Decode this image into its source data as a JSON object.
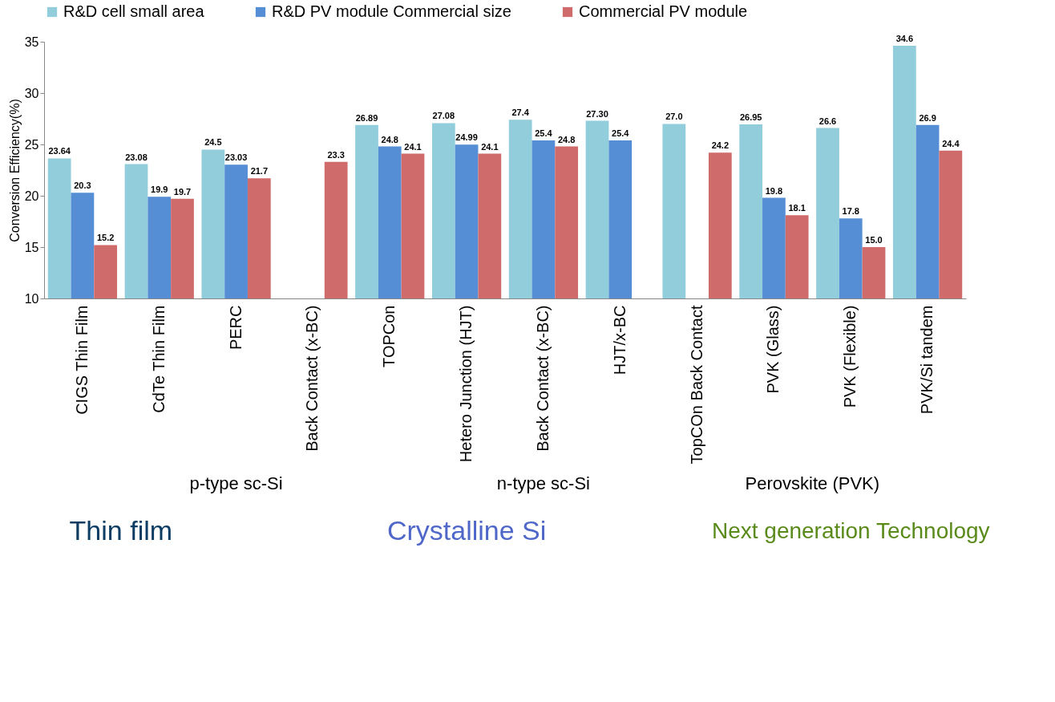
{
  "chart_data": {
    "type": "bar",
    "ylabel": "Conversion Efficiency(%)",
    "categories": [
      "CIGS Thin Film",
      "CdTe Thin Film",
      "PERC",
      "Back Contact (x-BC)",
      "TOPCon",
      "Hetero Junction (HJT)",
      "Back Contact (x-BC)",
      "HJT/x-BC",
      "TopCOn Back Contact",
      "PVK (Glass)",
      "PVK (Flexible)",
      "PVK/Si tandem"
    ],
    "series": [
      {
        "name": "R&D cell small area",
        "color": "#92cddc",
        "values": [
          23.64,
          23.08,
          24.5,
          null,
          26.89,
          27.08,
          27.4,
          27.3,
          27.0,
          26.95,
          26.6,
          34.6
        ],
        "value_labels": [
          "23.64",
          "23.08",
          "24.5",
          null,
          "26.89",
          "27.08",
          "27.4",
          "27.30",
          "27.0",
          "26.95",
          "26.6",
          "34.6"
        ]
      },
      {
        "name": "R&D PV module Commercial size",
        "color": "#558ed5",
        "values": [
          20.3,
          19.9,
          23.03,
          null,
          24.8,
          24.99,
          25.4,
          25.4,
          null,
          19.8,
          17.8,
          26.9
        ],
        "value_labels": [
          "20.3",
          "19.9",
          "23.03",
          null,
          "24.8",
          "24.99",
          "25.4",
          "25.4",
          null,
          "19.8",
          "17.8",
          "26.9"
        ]
      },
      {
        "name": "Commercial PV module",
        "color": "#d06b6b",
        "values": [
          15.2,
          19.7,
          21.7,
          23.3,
          24.1,
          24.1,
          24.8,
          null,
          24.2,
          18.1,
          15.0,
          24.4
        ],
        "value_labels": [
          "15.2",
          "19.7",
          "21.7",
          "23.3",
          "24.1",
          "24.1",
          "24.8",
          null,
          "24.2",
          "18.1",
          "15.0",
          "24.4"
        ]
      }
    ],
    "ylim": [
      10,
      35
    ],
    "yticks": [
      10,
      15,
      20,
      25,
      30,
      35
    ],
    "grid": false,
    "legend": "top",
    "annotations": [
      "p-type sc-Si",
      "n-type sc-Si",
      "Perovskite (PVK)",
      "Thin film",
      "Crystalline Si",
      "Next generation Technology"
    ]
  }
}
